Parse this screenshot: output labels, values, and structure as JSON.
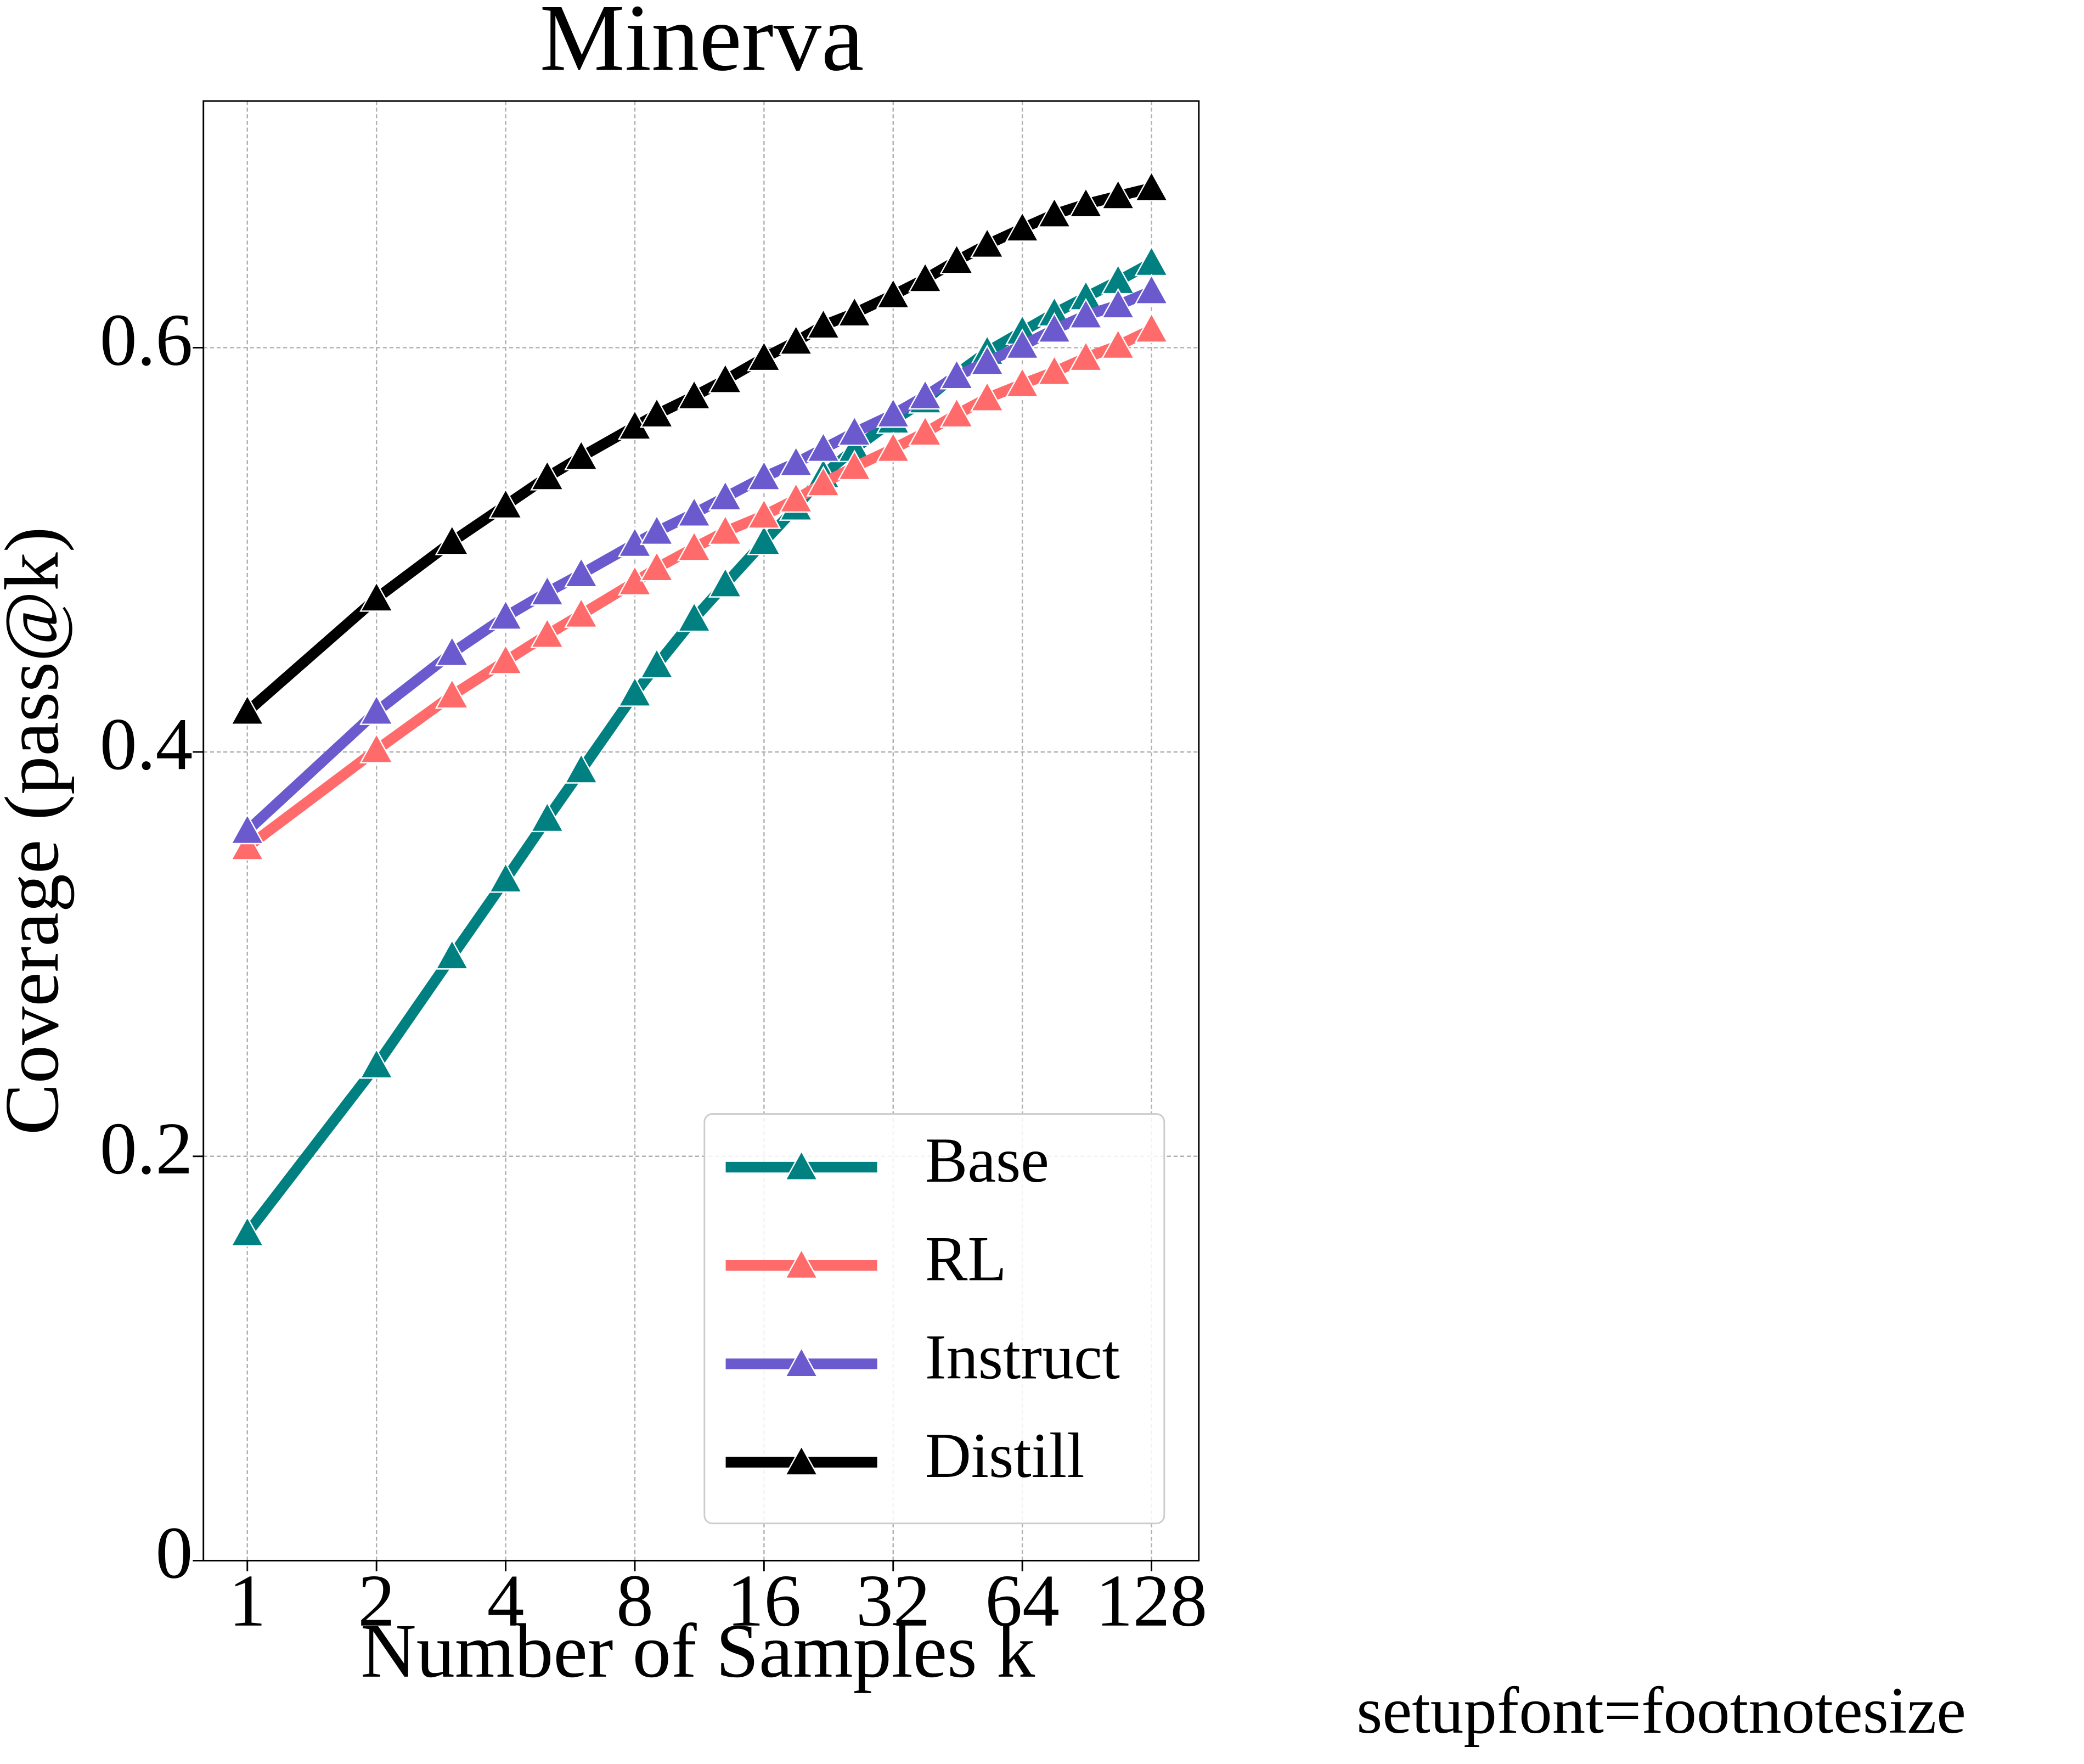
{
  "chart_data": {
    "type": "line",
    "title": "Minerva",
    "xlabel": "Number of Samples k",
    "ylabel": "Coverage (pass@k)",
    "x": [
      1,
      2,
      3,
      4,
      5,
      6,
      8,
      9,
      11,
      13,
      16,
      19,
      22,
      26,
      32,
      38,
      45,
      53,
      64,
      76,
      90,
      107,
      128
    ],
    "series": [
      {
        "name": "Base",
        "color": "#008080",
        "values": [
          0.162,
          0.245,
          0.299,
          0.337,
          0.367,
          0.391,
          0.429,
          0.443,
          0.466,
          0.483,
          0.504,
          0.521,
          0.537,
          0.55,
          0.564,
          0.574,
          0.587,
          0.598,
          0.608,
          0.617,
          0.625,
          0.633,
          0.642
        ]
      },
      {
        "name": "RL",
        "color": "#ff6b6b",
        "values": [
          0.353,
          0.401,
          0.428,
          0.445,
          0.458,
          0.468,
          0.484,
          0.491,
          0.501,
          0.509,
          0.517,
          0.525,
          0.533,
          0.541,
          0.55,
          0.558,
          0.567,
          0.575,
          0.582,
          0.588,
          0.595,
          0.601,
          0.609
        ]
      },
      {
        "name": "Instruct",
        "color": "#6a5acd",
        "values": [
          0.361,
          0.42,
          0.449,
          0.467,
          0.479,
          0.488,
          0.503,
          0.509,
          0.518,
          0.526,
          0.536,
          0.543,
          0.55,
          0.558,
          0.567,
          0.576,
          0.586,
          0.593,
          0.601,
          0.609,
          0.616,
          0.621,
          0.628
        ]
      },
      {
        "name": "Distill",
        "color": "#000000",
        "values": [
          0.42,
          0.476,
          0.504,
          0.522,
          0.536,
          0.546,
          0.561,
          0.567,
          0.576,
          0.584,
          0.595,
          0.603,
          0.611,
          0.617,
          0.626,
          0.634,
          0.643,
          0.651,
          0.659,
          0.666,
          0.671,
          0.675,
          0.679
        ]
      }
    ],
    "xscale": "log",
    "xlim": [
      0.79,
      165
    ],
    "xticks": [
      1,
      2,
      4,
      8,
      16,
      32,
      64,
      128
    ],
    "ylim": [
      0,
      0.722
    ],
    "yticks": [
      0,
      0.2,
      0.4,
      0.6
    ],
    "grid": true,
    "legend": "lower right",
    "note": "setupfont=footnotesize"
  }
}
